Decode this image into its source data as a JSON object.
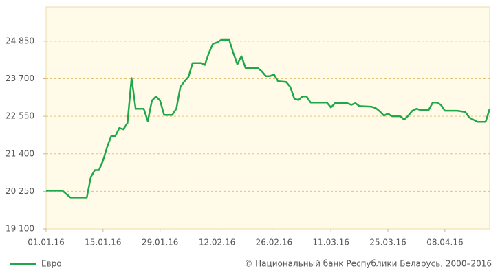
{
  "chart_data": {
    "type": "line",
    "x": [
      "01.01.16",
      "05.01.16",
      "07.01.16",
      "11.01.16",
      "12.01.16",
      "13.01.16",
      "14.01.16",
      "15.01.16",
      "16.01.16",
      "17.01.16",
      "18.01.16",
      "19.01.16",
      "20.01.16",
      "21.01.16",
      "22.01.16",
      "23.01.16",
      "25.01.16",
      "26.01.16",
      "27.01.16",
      "28.01.16",
      "29.01.16",
      "30.01.16",
      "01.02.16",
      "02.02.16",
      "03.02.16",
      "04.02.16",
      "05.02.16",
      "06.02.16",
      "08.02.16",
      "09.02.16",
      "10.02.16",
      "11.02.16",
      "12.02.16",
      "13.02.16",
      "15.02.16",
      "16.02.16",
      "17.02.16",
      "18.02.16",
      "19.02.16",
      "22.02.16",
      "23.02.16",
      "24.02.16",
      "25.02.16",
      "26.02.16",
      "27.02.16",
      "29.02.16",
      "01.03.16",
      "02.03.16",
      "03.03.16",
      "04.03.16",
      "05.03.16",
      "06.03.16",
      "10.03.16",
      "11.03.16",
      "12.03.16",
      "15.03.16",
      "16.03.16",
      "17.03.16",
      "18.03.16",
      "21.03.16",
      "22.03.16",
      "23.03.16",
      "24.03.16",
      "25.03.16",
      "26.03.16",
      "28.03.16",
      "29.03.16",
      "30.03.16",
      "31.03.16",
      "01.04.16",
      "02.04.16",
      "04.04.16",
      "05.04.16",
      "06.04.16",
      "07.04.16",
      "08.04.16",
      "11.04.16",
      "13.04.16",
      "14.04.16",
      "16.04.16",
      "18.04.16",
      "19.04.16"
    ],
    "series": [
      {
        "name": "Евро",
        "color": "#1fa84a",
        "values": [
          20270,
          20270,
          20060,
          20060,
          20690,
          20900,
          20900,
          21190,
          21610,
          21940,
          21940,
          22190,
          22150,
          22340,
          23720,
          22780,
          22780,
          22400,
          23030,
          23160,
          23030,
          22590,
          22590,
          22780,
          23450,
          23620,
          23760,
          24180,
          24180,
          24120,
          24490,
          24770,
          24810,
          24890,
          24890,
          24490,
          24140,
          24390,
          24030,
          24030,
          23930,
          23780,
          23780,
          23830,
          23620,
          23600,
          23450,
          23090,
          23050,
          23160,
          23160,
          22970,
          22970,
          22820,
          22950,
          22950,
          22900,
          22950,
          22860,
          22840,
          22800,
          22700,
          22570,
          22630,
          22550,
          22550,
          22450,
          22570,
          22720,
          22780,
          22740,
          22740,
          22970,
          22970,
          22900,
          22720,
          22720,
          22680,
          22510,
          22380,
          22380,
          22780
        ]
      }
    ],
    "xlim": [
      "01.01.16",
      "19.04.16"
    ],
    "xticks": [
      "01.01.16",
      "15.01.16",
      "29.01.16",
      "12.02.16",
      "26.02.16",
      "11.03.16",
      "25.03.16",
      "08.04.16"
    ],
    "ylim": [
      19100,
      25900
    ],
    "yticks": [
      {
        "value": 19100,
        "label": "19 100"
      },
      {
        "value": 20250,
        "label": "20 250"
      },
      {
        "value": 21400,
        "label": "21 400"
      },
      {
        "value": 22550,
        "label": "22 550"
      },
      {
        "value": 23700,
        "label": "23 700"
      },
      {
        "value": 24850,
        "label": "24 850"
      }
    ],
    "grid": true,
    "source": "© Национальный банк Республики Беларусь, 2000–2016"
  }
}
